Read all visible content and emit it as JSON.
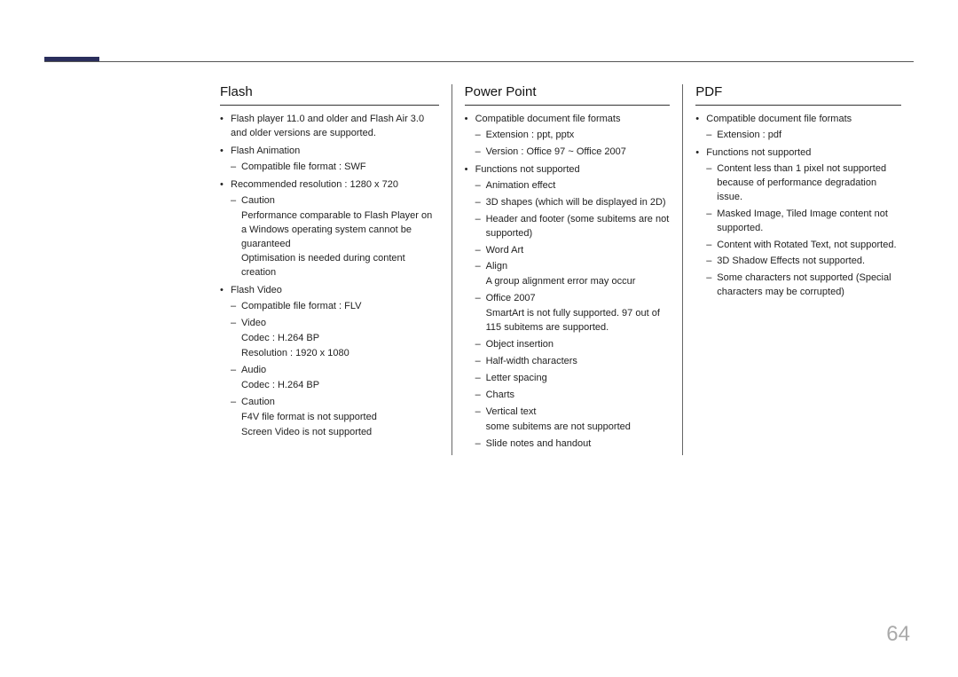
{
  "page_number": "64",
  "columns": {
    "flash": {
      "heading": "Flash",
      "b0": "Flash player 11.0 and older and Flash Air 3.0 and older versions are supported.",
      "b1": "Flash Animation",
      "b1_d0": "Compatible file format : SWF",
      "b2": "Recommended resolution : 1280 x 720",
      "b2_d0": "Caution",
      "b2_d0_s0": "Performance comparable to Flash Player on a Windows operating system cannot be guaranteed",
      "b2_d0_s1": "Optimisation is needed during content creation",
      "b3": "Flash Video",
      "b3_d0": "Compatible file format : FLV",
      "b3_d1": "Video",
      "b3_d1_s0": "Codec : H.264 BP",
      "b3_d1_s1": "Resolution : 1920 x 1080",
      "b3_d2": "Audio",
      "b3_d2_s0": "Codec : H.264 BP",
      "b3_d3": "Caution",
      "b3_d3_s0": "F4V file format is not supported",
      "b3_d3_s1": "Screen Video is not supported"
    },
    "ppt": {
      "heading": "Power Point",
      "b0": "Compatible document file formats",
      "b0_d0": "Extension : ppt, pptx",
      "b0_d1": "Version : Office 97 ~ Office 2007",
      "b1": "Functions not supported",
      "b1_d0": "Animation effect",
      "b1_d1": "3D shapes (which will be displayed in 2D)",
      "b1_d2": "Header and footer (some subitems are not supported)",
      "b1_d3": "Word Art",
      "b1_d4": "Align",
      "b1_d4_s0": "A group alignment error may occur",
      "b1_d5": "Office 2007",
      "b1_d5_s0": "SmartArt is not fully supported. 97 out of 115 subitems are supported.",
      "b1_d6": "Object insertion",
      "b1_d7": "Half-width characters",
      "b1_d8": "Letter spacing",
      "b1_d9": "Charts",
      "b1_d10": "Vertical text",
      "b1_d10_s0": "some subitems are not supported",
      "b1_d11": "Slide notes and handout"
    },
    "pdf": {
      "heading": "PDF",
      "b0": "Compatible document file formats",
      "b0_d0": "Extension : pdf",
      "b1": "Functions not supported",
      "b1_d0": "Content less than 1 pixel not supported because of performance degradation issue.",
      "b1_d1": "Masked Image, Tiled Image content not supported.",
      "b1_d2": "Content with Rotated Text, not supported.",
      "b1_d3": "3D Shadow Effects not supported.",
      "b1_d4": "Some characters not supported (Special characters may be corrupted)"
    }
  }
}
